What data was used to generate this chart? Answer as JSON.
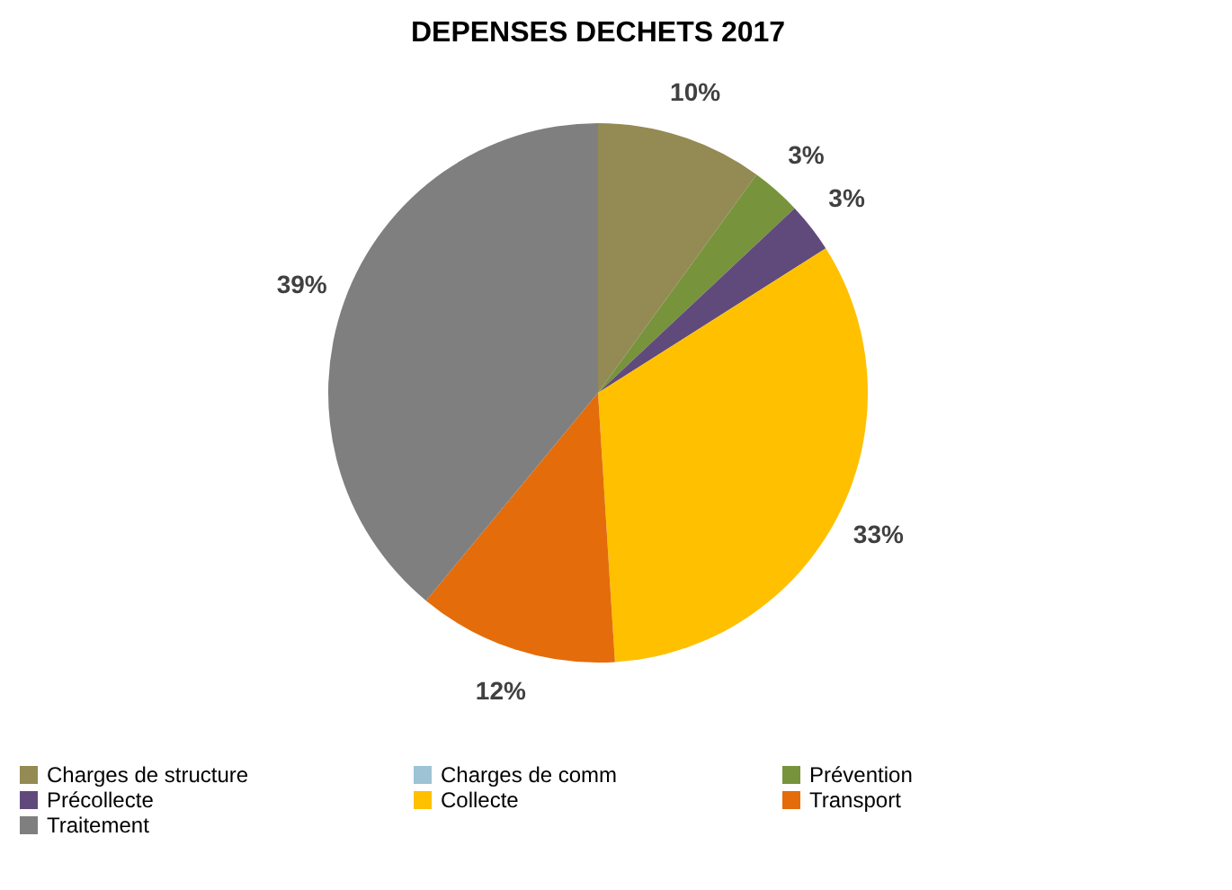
{
  "chart_data": {
    "type": "pie",
    "title": "DEPENSES DECHETS 2017",
    "categories": [
      "Charges de structure",
      "Charges de comm",
      "Prévention",
      "Précollecte",
      "Collecte",
      "Transport",
      "Traitement"
    ],
    "values": [
      10,
      0,
      3,
      3,
      33,
      12,
      39
    ],
    "value_labels": [
      "10%",
      null,
      "3%",
      "3%",
      "33%",
      "12%",
      "39%"
    ],
    "colors": [
      "#948a54",
      "#9dc3d5",
      "#77933c",
      "#604a7b",
      "#ffc000",
      "#e46c0a",
      "#7f7f7f"
    ],
    "legend": "bottom"
  }
}
